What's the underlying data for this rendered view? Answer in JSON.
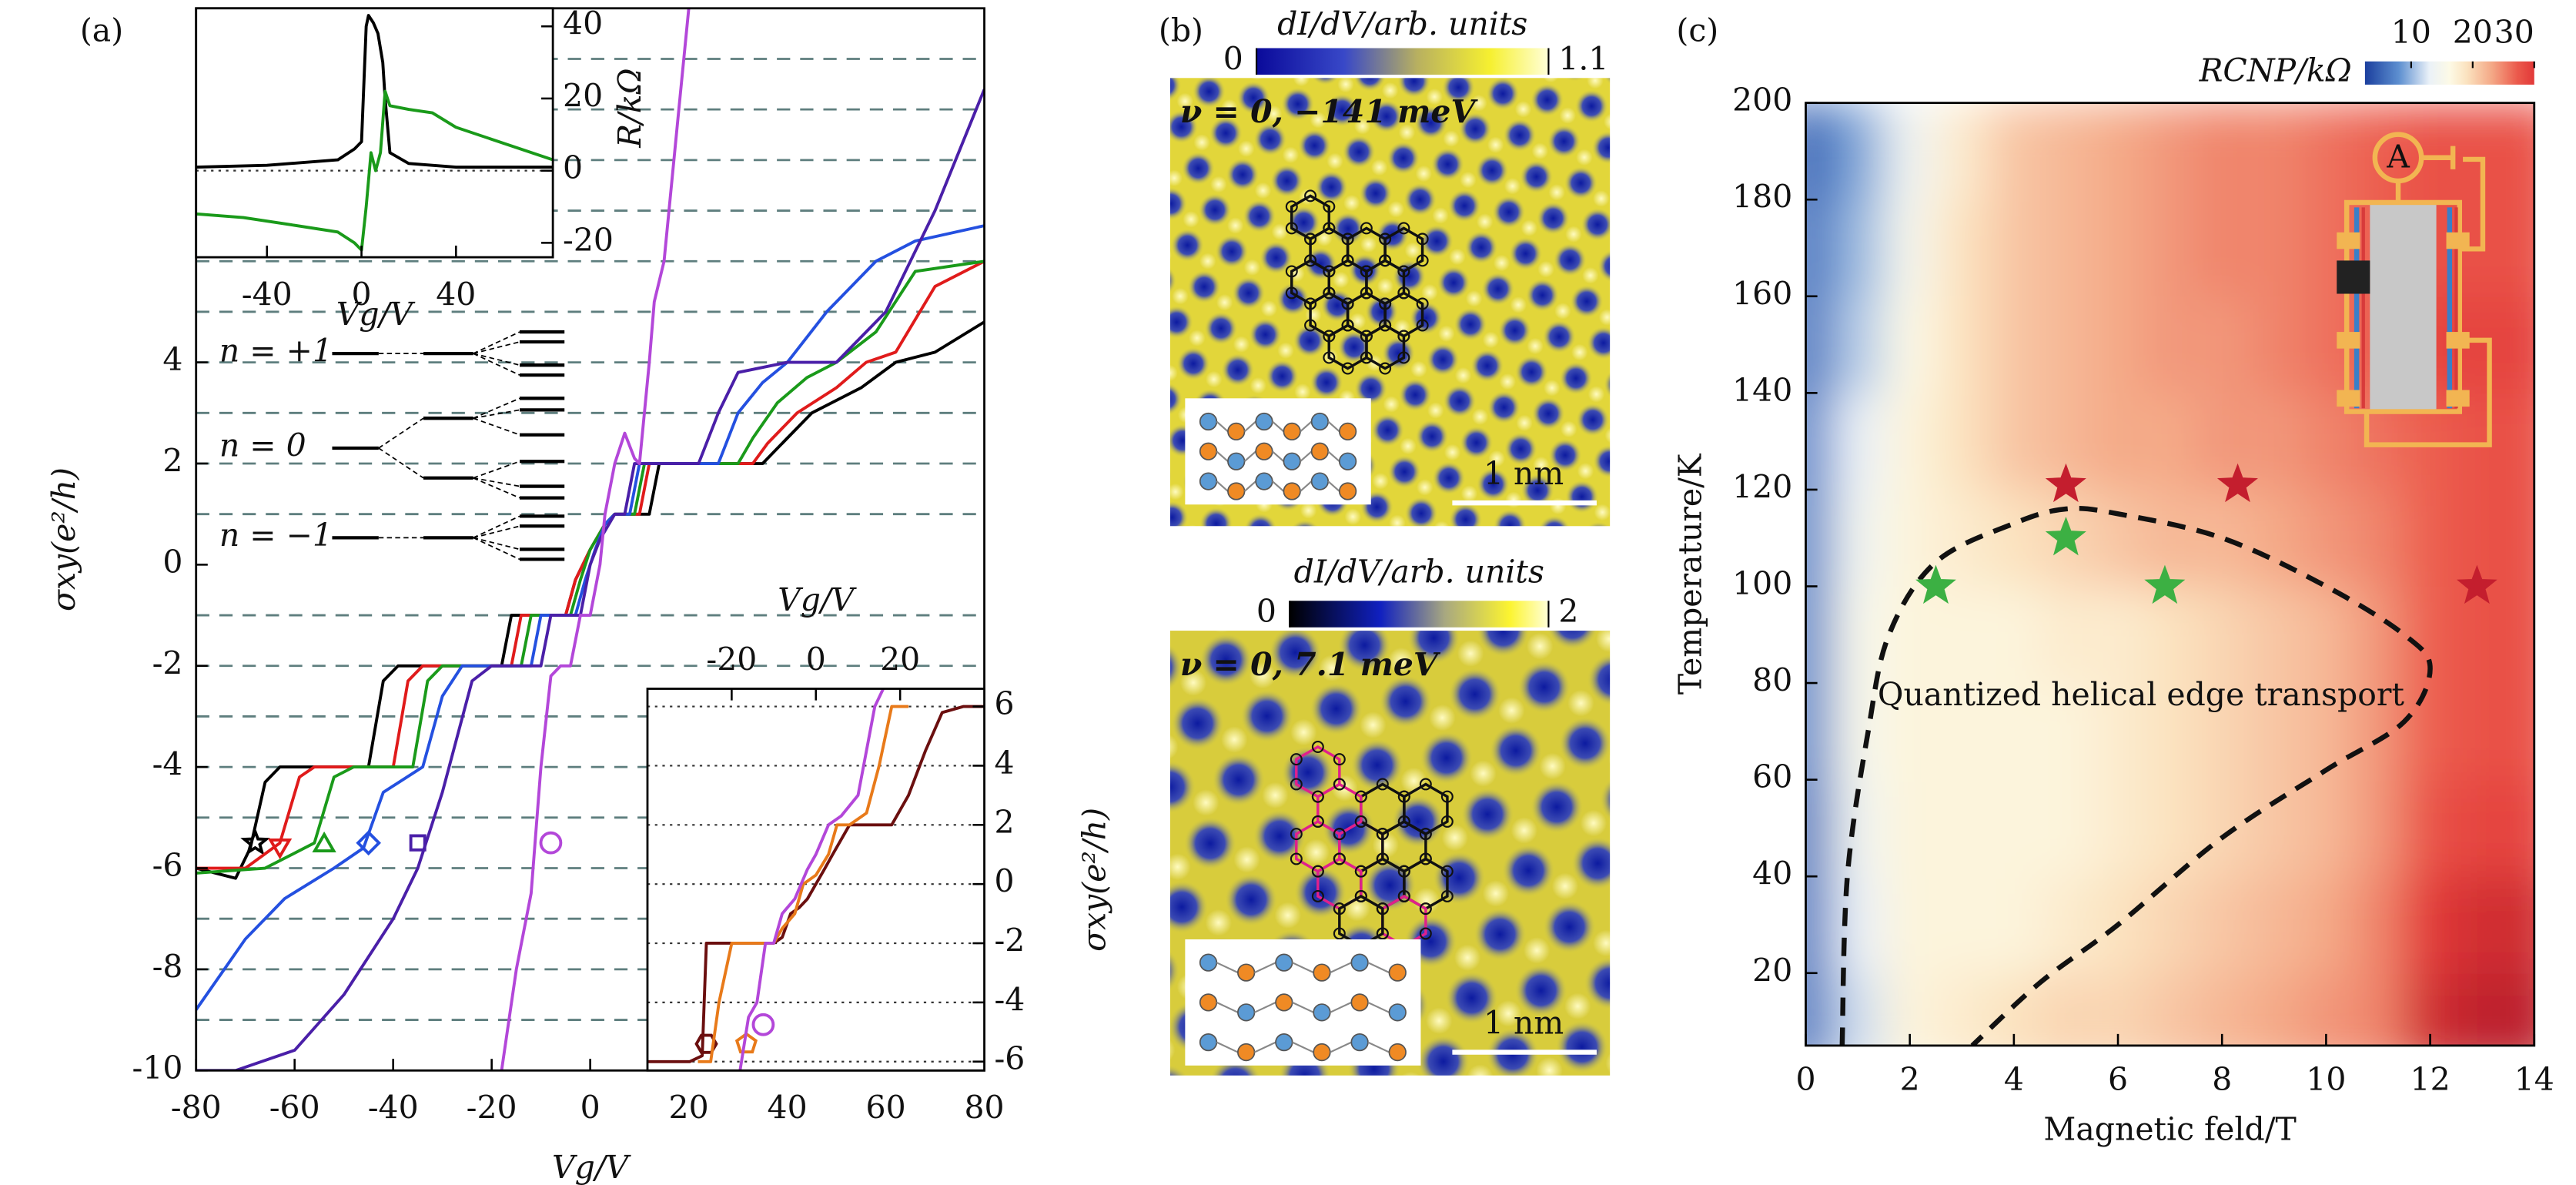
{
  "panel_labels": [
    "(a)",
    "(b)",
    "(c)"
  ],
  "chart_data": [
    {
      "type": "line",
      "xlabel": "Vg/V",
      "ylabel": "σxy(e²/h)",
      "xlim": [
        -80,
        80
      ],
      "xticks": [
        -80,
        -60,
        -40,
        -20,
        0,
        20,
        40,
        60,
        80
      ],
      "ylim": [
        -10,
        11
      ],
      "yticks": [
        -10,
        -8,
        -6,
        -4,
        -2,
        0,
        2,
        4
      ],
      "hlines": [
        -9,
        -8,
        -7,
        -6,
        -5,
        -4,
        -3,
        -2,
        -1,
        1,
        2,
        3,
        4,
        5,
        6,
        7,
        8,
        9,
        10
      ],
      "hline_style": "dashed",
      "annotations": [
        "n = +1",
        "n = 0",
        "n = −1"
      ],
      "series": [
        {
          "color": "#000000",
          "marker": "star",
          "marker_x": -68,
          "marker_y": -5.5,
          "x": [
            -80,
            -72,
            -69,
            -66,
            -63,
            -45,
            -42,
            -39,
            -18,
            -16,
            -5,
            -3,
            0,
            3,
            5,
            12,
            14,
            35,
            38,
            45,
            55,
            62,
            70,
            80
          ],
          "values": [
            -6,
            -6.2,
            -5.6,
            -4.3,
            -4,
            -4,
            -2.3,
            -2,
            -2,
            -1,
            -1,
            -0.3,
            0.3,
            0.8,
            1,
            1,
            2,
            2,
            2.3,
            3,
            3.5,
            4,
            4.2,
            4.8
          ]
        },
        {
          "color": "#e01b1b",
          "marker": "triangle-down",
          "marker_x": -63,
          "marker_y": -5.6,
          "x": [
            -80,
            -70,
            -63,
            -59,
            -56,
            -40,
            -37,
            -34,
            -16,
            -14,
            -5,
            -3,
            0,
            3,
            5,
            10,
            12,
            33,
            36,
            42,
            50,
            56,
            62,
            70,
            80
          ],
          "values": [
            -6,
            -6,
            -5.5,
            -4.2,
            -4,
            -4,
            -2.3,
            -2,
            -2,
            -1,
            -1,
            -0.3,
            0.3,
            0.8,
            1,
            1,
            2,
            2,
            2.4,
            3,
            3.5,
            4,
            4.2,
            5.5,
            6
          ]
        },
        {
          "color": "#1a9a1a",
          "marker": "triangle-up",
          "marker_x": -54,
          "marker_y": -5.5,
          "x": [
            -80,
            -66,
            -56,
            -52,
            -48,
            -36,
            -33,
            -30,
            -14,
            -12,
            -4,
            -2,
            0,
            3,
            5,
            9,
            11,
            30,
            33,
            38,
            44,
            50,
            58,
            66,
            80
          ],
          "values": [
            -6.1,
            -6,
            -5.5,
            -4.2,
            -4,
            -4,
            -2.3,
            -2,
            -2,
            -1,
            -1,
            -0.3,
            0.3,
            0.8,
            1,
            1,
            2,
            2,
            2.5,
            3.2,
            3.7,
            4,
            4.6,
            5.8,
            6
          ]
        },
        {
          "color": "#2450e0",
          "marker": "diamond",
          "marker_x": -45,
          "marker_y": -5.5,
          "x": [
            -80,
            -70,
            -62,
            -52,
            -46,
            -42,
            -34,
            -30,
            -26,
            -12,
            -10,
            -3,
            -1,
            1,
            3,
            5,
            8,
            10,
            26,
            30,
            35,
            40,
            48,
            58,
            66,
            80
          ],
          "values": [
            -8.8,
            -7.4,
            -6.6,
            -6,
            -5.6,
            -4.5,
            -4,
            -2.6,
            -2,
            -2,
            -1,
            -1,
            -0.3,
            0.3,
            0.8,
            1,
            1,
            2,
            2,
            3,
            3.6,
            4,
            5,
            6,
            6.4,
            6.7
          ]
        },
        {
          "color": "#4a1fa8",
          "marker": "square",
          "marker_x": -35,
          "marker_y": -5.5,
          "x": [
            -80,
            -72,
            -60,
            -50,
            -40,
            -35,
            -30,
            -24,
            -20,
            -10,
            -8,
            -2,
            0,
            2,
            5,
            7,
            9,
            22,
            26,
            30,
            40,
            50,
            60,
            70,
            80
          ],
          "values": [
            -10,
            -10,
            -9.6,
            -8.5,
            -7,
            -6,
            -4.5,
            -2.3,
            -2,
            -2,
            -1,
            -1,
            0,
            0.5,
            1,
            1,
            2,
            2,
            3,
            3.8,
            4,
            4,
            5,
            7,
            9.4
          ]
        },
        {
          "color": "#b347d9",
          "marker": "circle",
          "marker_x": -8,
          "marker_y": -5.5,
          "x": [
            -18,
            -15,
            -12,
            -10,
            -8,
            -6,
            -4,
            -2,
            0,
            2,
            3,
            5,
            7,
            9,
            10,
            12,
            13,
            15,
            18,
            20
          ],
          "values": [
            -10,
            -8,
            -6.5,
            -4,
            -2.2,
            -2,
            -2,
            -1,
            -1,
            0,
            1,
            2,
            2.6,
            2.1,
            2,
            4,
            5.2,
            6,
            9,
            11
          ]
        }
      ]
    },
    {
      "type": "line",
      "xlabel": "Vg/V",
      "ylabel": "R/kΩ",
      "xlim": [
        -70,
        81
      ],
      "xticks": [
        -40,
        0,
        40
      ],
      "ylim": [
        -24,
        45
      ],
      "yticks": [
        -20,
        0,
        20,
        40
      ],
      "hlines": [
        0
      ],
      "hline_style": "dotted",
      "series": [
        {
          "color": "#000000",
          "x": [
            -70,
            -40,
            -10,
            -3,
            0,
            2,
            3,
            5,
            7,
            9,
            10,
            12,
            20,
            40,
            81
          ],
          "values": [
            1,
            1.5,
            3,
            6,
            8,
            40,
            43,
            41,
            38,
            30,
            20,
            5,
            2,
            1,
            1
          ]
        },
        {
          "color": "#1a9a1a",
          "x": [
            -70,
            -50,
            -30,
            -10,
            -3,
            0,
            2,
            4,
            6,
            8,
            10,
            12,
            20,
            30,
            40,
            81
          ],
          "values": [
            -12,
            -13,
            -15,
            -17,
            -20,
            -22,
            -10,
            5,
            0,
            5,
            22,
            18,
            17,
            16,
            12,
            3
          ]
        }
      ]
    },
    {
      "type": "line",
      "xlabel": "Vg/V",
      "ylabel": "σxy(e²/h)",
      "xlim": [
        -40,
        40
      ],
      "xticks": [
        -20,
        0,
        20
      ],
      "ylim": [
        -6.3,
        6.6
      ],
      "yticks": [
        -6,
        -4,
        -2,
        0,
        2,
        4,
        6
      ],
      "grid": true,
      "grid_style": "dotted",
      "series": [
        {
          "color": "#6b0f0f",
          "marker": "hexagon",
          "marker_x": -26,
          "marker_y": -5.4,
          "x": [
            -40,
            -30,
            -27,
            -26,
            -18,
            -10,
            -8,
            -6,
            -4,
            -2,
            0,
            2,
            4,
            8,
            12,
            18,
            22,
            26,
            30,
            35,
            40
          ],
          "values": [
            -6,
            -6,
            -5.8,
            -2,
            -2,
            -2,
            -1.8,
            -1,
            -0.8,
            -0.5,
            0,
            0.5,
            1,
            2,
            2,
            2,
            3,
            4.5,
            5.8,
            6,
            6
          ]
        },
        {
          "color": "#e87a1a",
          "marker": "pentagon",
          "marker_x": -16.5,
          "marker_y": -5.4,
          "x": [
            -28,
            -25,
            -23,
            -20,
            -10,
            -8,
            -5,
            -3,
            0,
            3,
            5,
            8,
            12,
            15,
            18,
            22
          ],
          "values": [
            -6,
            -6,
            -4,
            -2,
            -2,
            -1.5,
            -1,
            0,
            0.3,
            1,
            2,
            2,
            2.4,
            4,
            6,
            6
          ]
        },
        {
          "color": "#b347d9",
          "marker": "circle",
          "marker_x": -12.5,
          "marker_y": -4.75,
          "x": [
            -18,
            -16,
            -14,
            -12,
            -10,
            -8,
            -5,
            -2,
            0,
            3,
            6,
            10,
            14,
            16
          ],
          "values": [
            -6.3,
            -4.5,
            -4,
            -2,
            -2,
            -1,
            -0.5,
            0.5,
            1,
            2,
            2.3,
            3,
            6,
            6.6
          ]
        }
      ]
    },
    {
      "type": "image",
      "colorbar_label": "dI/dV/arb. units",
      "clim": [
        0,
        1.1
      ],
      "cticks": [
        0,
        1.1
      ],
      "caption": "ν = 0, −141 meV",
      "scale_bar": "1 nm"
    },
    {
      "type": "image",
      "colorbar_label": "dI/dV/arb. units",
      "clim": [
        0,
        2
      ],
      "cticks": [
        0,
        2
      ],
      "caption": "ν = 0, 7.1 meV",
      "scale_bar": "1 nm"
    },
    {
      "type": "heatmap",
      "xlabel": "Magnetic feld/T",
      "ylabel": "Temperature/K",
      "xlim": [
        0,
        14
      ],
      "xticks": [
        0,
        2,
        4,
        6,
        8,
        10,
        12,
        14
      ],
      "ylim": [
        5,
        200
      ],
      "yticks": [
        20,
        40,
        60,
        80,
        100,
        120,
        140,
        160,
        180,
        200
      ],
      "colorbar_label": "RCNP/kΩ",
      "clim": [
        2.5,
        30
      ],
      "cticks": [
        10,
        20,
        30
      ],
      "ammeter": "A",
      "x": [
        0,
        1,
        2,
        3,
        4,
        5,
        6,
        7,
        8,
        9,
        10,
        11,
        12,
        13,
        14
      ],
      "y": [
        10,
        30,
        50,
        70,
        90,
        110,
        130,
        150,
        170,
        190
      ],
      "z": [
        [
          6,
          12,
          17,
          18,
          19,
          20,
          20,
          21,
          22,
          23,
          24,
          25,
          31,
          32,
          32
        ],
        [
          6,
          13,
          17,
          17,
          17,
          18,
          19,
          20,
          21,
          22,
          23,
          25,
          30,
          31,
          31
        ],
        [
          6,
          14,
          17,
          17,
          17,
          17,
          18,
          19,
          20,
          21,
          22,
          24,
          28,
          29,
          29
        ],
        [
          7,
          15,
          17,
          17,
          17,
          17,
          18,
          19,
          20,
          21,
          22,
          24,
          27,
          28,
          28
        ],
        [
          7,
          15,
          17,
          17,
          17,
          18,
          18,
          19,
          20,
          21,
          22,
          24,
          27,
          28,
          28
        ],
        [
          7,
          14,
          17,
          18,
          19,
          20,
          21,
          22,
          22,
          23,
          24,
          25,
          27,
          28,
          28
        ],
        [
          7,
          13,
          17,
          19,
          21,
          22,
          23,
          23,
          24,
          24,
          25,
          26,
          27,
          28,
          28
        ],
        [
          6,
          11,
          16,
          19,
          21,
          22,
          23,
          24,
          24,
          25,
          26,
          27,
          29,
          29,
          29
        ],
        [
          6,
          10,
          15,
          19,
          21,
          22,
          23,
          24,
          25,
          25,
          26,
          27,
          28,
          28,
          28
        ],
        [
          5,
          9,
          14,
          18,
          21,
          22,
          23,
          24,
          25,
          25,
          26,
          27,
          28,
          28,
          28
        ]
      ],
      "boundary": {
        "x": [
          0.7,
          0.8,
          1.2,
          1.6,
          2.5,
          4,
          5,
          6,
          8,
          10,
          11.5,
          12,
          11.5,
          10,
          8,
          6,
          4.5,
          3.2
        ],
        "y": [
          5,
          40,
          70,
          90,
          105,
          113,
          116,
          115,
          110,
          100,
          90,
          83,
          72,
          62,
          48,
          30,
          18,
          5
        ]
      },
      "annotation": "Quantized helical edge transport",
      "series": [
        {
          "color": "#c41e2e",
          "marker": "star",
          "x": [
            5,
            8.3,
            12.9
          ],
          "values": [
            121,
            121,
            100
          ]
        },
        {
          "color": "#3cb043",
          "marker": "star",
          "x": [
            2.5,
            5,
            6.9
          ],
          "values": [
            100,
            110,
            100
          ]
        }
      ]
    }
  ]
}
